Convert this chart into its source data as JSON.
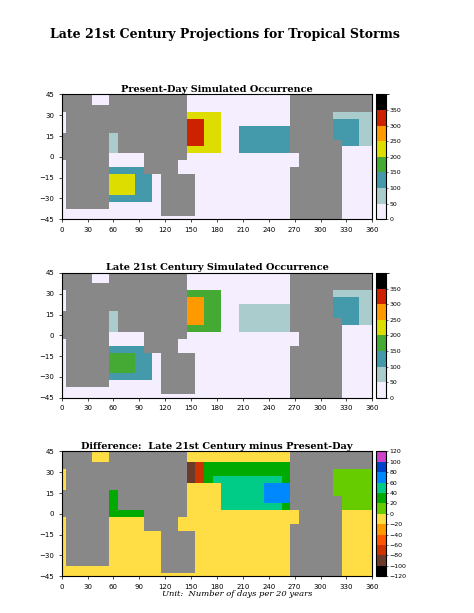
{
  "main_title": "Late 21st Century Projections for Tropical Storms",
  "panel1_title": "Present-Day Simulated Occurrence",
  "panel2_title": "Late 21st Century Simulated Occurrence",
  "panel3_title": "Difference:  Late 21st Century minus Present-Day",
  "unit_label": "Unit:  Number of days per 20 years",
  "colorbar1_ticks": [
    0,
    50,
    100,
    150,
    200,
    250,
    300,
    350
  ],
  "colorbar2_ticks": [
    0,
    50,
    100,
    150,
    200,
    250,
    300,
    350
  ],
  "colorbar3_ticks": [
    -120,
    -100,
    -80,
    -60,
    -40,
    -20,
    0,
    20,
    40,
    60,
    80,
    100,
    120
  ],
  "colorbar1_colors": [
    "#f0e8ff",
    "#aadddd",
    "#55aaaa",
    "#66bb44",
    "#ffff00",
    "#ffaa00",
    "#dd3300",
    "#990000",
    "#000000"
  ],
  "colorbar3_colors": [
    "#000000",
    "#555555",
    "#884422",
    "#dd4400",
    "#ff6600",
    "#ffaa00",
    "#aadd44",
    "#00aa00",
    "#44ddaa",
    "#00aaff",
    "#0055ff",
    "#8800ff",
    "#ffffff"
  ],
  "xlim": [
    0,
    360
  ],
  "ylim": [
    -45,
    45
  ],
  "xticks": [
    0,
    30,
    60,
    90,
    120,
    150,
    180,
    210,
    240,
    270,
    300,
    330,
    360
  ],
  "yticks": [
    -45,
    -30,
    -15,
    0,
    15,
    30,
    45
  ],
  "bg_color": "#ffffff",
  "land_color": "#888888",
  "ocean_base": "#f0e8ff"
}
